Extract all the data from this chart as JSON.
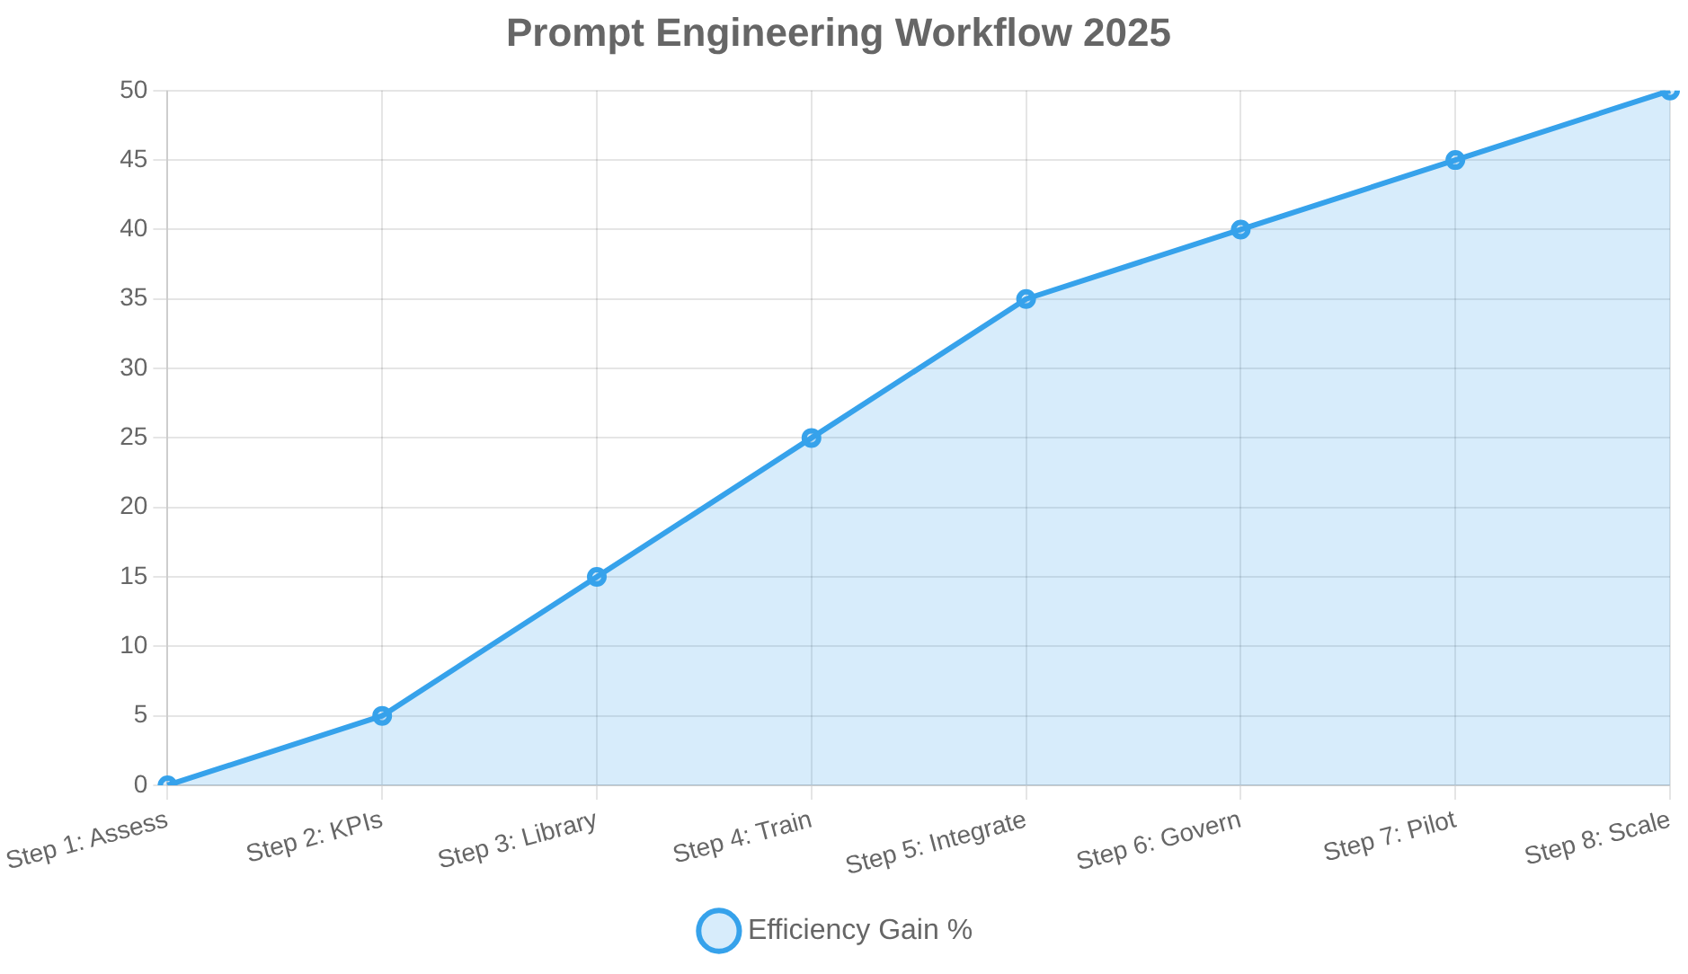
{
  "chart_data": {
    "type": "area",
    "title": "Prompt Engineering Workflow 2025",
    "categories": [
      "Step 1: Assess",
      "Step 2: KPIs",
      "Step 3: Library",
      "Step 4: Train",
      "Step 5: Integrate",
      "Step 6: Govern",
      "Step 7: Pilot",
      "Step 8: Scale"
    ],
    "series": [
      {
        "name": "Efficiency Gain %",
        "color": "#36a2eb",
        "values": [
          0,
          5,
          15,
          25,
          35,
          40,
          45,
          50
        ]
      }
    ],
    "ylim": [
      0,
      50
    ],
    "yticks": [
      0,
      5,
      10,
      15,
      20,
      25,
      30,
      35,
      40,
      45,
      50
    ],
    "grid": true,
    "legend": "bottom",
    "marker": "circle",
    "line_style": "solid"
  }
}
